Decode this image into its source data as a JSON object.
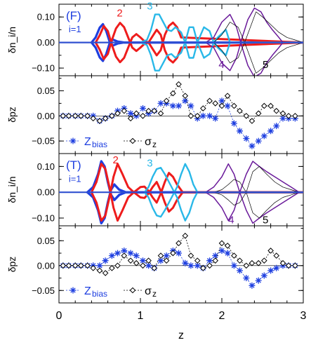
{
  "colors": {
    "red": "#ee1c1c",
    "cyan": "#29b8e8",
    "blue": "#1e3fe0",
    "purple": "#6a1a9a",
    "black": "#000000",
    "gray": "#707070",
    "zero_line_blue": "#3050d0"
  },
  "figure": {
    "xlabel": "z",
    "xlim": [
      0,
      3
    ],
    "xticks": [
      "0",
      "1",
      "2",
      "3"
    ]
  },
  "chart_data": [
    {
      "type": "line",
      "panel_label": "(F)",
      "ylabel": "δn_i/n",
      "ylim": [
        -0.13,
        0.15
      ],
      "yticks": [
        "0.10",
        "0.00",
        "−0.10"
      ],
      "ytick_values": [
        0.1,
        0.0,
        -0.1
      ],
      "series_labels": [
        {
          "text": "i=1",
          "color_key": "blue",
          "z": 0.12,
          "y": 0.04,
          "small": true
        },
        {
          "text": "2",
          "color_key": "red",
          "z": 0.71,
          "y": 0.102
        },
        {
          "text": "3",
          "color_key": "cyan",
          "z": 1.08,
          "y": 0.13
        },
        {
          "text": "4",
          "color_key": "purple",
          "z": 1.96,
          "y": -0.1
        },
        {
          "text": "5",
          "color_key": "black",
          "z": 2.5,
          "y": -0.1
        }
      ],
      "series": [
        {
          "key": "blue",
          "width": 3.2,
          "x": [
            0.4,
            0.45,
            0.5,
            0.54,
            0.58,
            0.62,
            0.66,
            0.72,
            0.8,
            3.0
          ],
          "y": [
            0,
            0.02,
            0.058,
            0.072,
            0.045,
            0.005,
            -0.012,
            -0.004,
            0,
            0
          ],
          "y2": [
            0,
            -0.02,
            -0.058,
            -0.072,
            -0.045,
            -0.005,
            0.012,
            0.004,
            0,
            0
          ]
        },
        {
          "key": "red",
          "width": 3,
          "x": [
            0.45,
            0.5,
            0.55,
            0.6,
            0.65,
            0.7,
            0.75,
            0.8,
            0.85,
            0.9,
            0.95,
            1.0,
            1.05,
            1.1,
            1.15,
            1.2,
            1.25,
            1.3,
            1.35,
            1.4,
            1.45,
            1.5,
            3.0
          ],
          "y": [
            0,
            -0.028,
            -0.065,
            -0.045,
            0.01,
            0.055,
            0.077,
            0.06,
            0.02,
            -0.02,
            -0.033,
            -0.02,
            -0.005,
            0,
            -0.025,
            -0.05,
            -0.03,
            0.03,
            0.065,
            0.078,
            0.06,
            0.02,
            0
          ],
          "y2": [
            0,
            0.028,
            0.065,
            0.045,
            -0.01,
            -0.055,
            -0.077,
            -0.06,
            -0.02,
            0.02,
            0.033,
            0.02,
            0.005,
            0,
            0.025,
            0.05,
            0.03,
            -0.03,
            -0.065,
            -0.078,
            -0.06,
            -0.02,
            0
          ]
        },
        {
          "key": "cyan",
          "width": 2.4,
          "x": [
            1.0,
            1.08,
            1.13,
            1.18,
            1.23,
            1.28,
            1.33,
            1.38,
            1.43,
            1.5,
            1.55,
            1.6,
            1.65,
            1.7,
            1.78,
            1.85,
            1.9,
            1.95,
            2.05,
            2.1,
            3.0
          ],
          "y": [
            0,
            0.01,
            0.05,
            0.11,
            0.11,
            0.08,
            0.05,
            0.045,
            0.06,
            0.04,
            0.0,
            -0.06,
            -0.06,
            0.0,
            0.06,
            0.045,
            0.0,
            0.02,
            0.05,
            0.0,
            0
          ],
          "y2": [
            0,
            -0.01,
            -0.05,
            -0.11,
            -0.11,
            -0.08,
            -0.05,
            -0.045,
            -0.06,
            -0.04,
            0.0,
            0.06,
            0.06,
            0.0,
            -0.06,
            -0.045,
            0.0,
            -0.02,
            -0.05,
            0.0,
            0
          ]
        },
        {
          "key": "purple",
          "width": 1.5,
          "x": [
            1.8,
            1.9,
            2.0,
            2.1,
            2.18,
            2.25,
            2.32,
            2.4,
            2.48,
            2.55,
            2.62,
            2.7,
            2.75,
            3.0
          ],
          "y": [
            0,
            -0.02,
            -0.08,
            -0.11,
            -0.06,
            0.02,
            0.09,
            0.135,
            0.12,
            0.08,
            0.05,
            0.02,
            0,
            0
          ],
          "y2": [
            0,
            0.02,
            0.08,
            0.11,
            0.06,
            -0.02,
            -0.09,
            -0.135,
            -0.12,
            -0.08,
            -0.05,
            -0.02,
            0,
            0
          ]
        },
        {
          "key": "black",
          "width": 0.7,
          "x": [
            1.9,
            2.0,
            2.1,
            2.2,
            2.28,
            2.35,
            2.42,
            2.5,
            2.6,
            2.7,
            2.8,
            2.9,
            3.0
          ],
          "y": [
            0,
            0.03,
            0.08,
            0.06,
            0.0,
            -0.06,
            -0.12,
            -0.1,
            -0.07,
            -0.04,
            -0.02,
            -0.01,
            0
          ],
          "y2": [
            0,
            -0.03,
            -0.08,
            -0.06,
            0.0,
            0.06,
            0.12,
            0.1,
            0.07,
            0.04,
            0.02,
            0.01,
            0
          ]
        }
      ]
    },
    {
      "type": "scatter",
      "ylabel": "δpz",
      "ylim": [
        -0.075,
        0.08
      ],
      "yticks": [
        "0.05",
        "0.00",
        "−0.05"
      ],
      "ytick_values": [
        0.05,
        0.0,
        -0.05
      ],
      "legend": [
        {
          "label_main": "Z",
          "label_sub": "bias",
          "marker": "star",
          "color_key": "blue"
        },
        {
          "label_main": "σ",
          "label_sub": "z",
          "marker": "diamond",
          "color_key": "black"
        }
      ],
      "series": [
        {
          "name": "Z_bias",
          "marker": "star",
          "color_key": "blue",
          "x": [
            0.05,
            0.12,
            0.2,
            0.27,
            0.35,
            0.42,
            0.5,
            0.57,
            0.65,
            0.72,
            0.8,
            0.88,
            0.95,
            1.03,
            1.1,
            1.17,
            1.25,
            1.32,
            1.4,
            1.47,
            1.55,
            1.62,
            1.7,
            1.77,
            1.85,
            1.92,
            2.0,
            2.07,
            2.15,
            2.22,
            2.3,
            2.37,
            2.45,
            2.52,
            2.6,
            2.67,
            2.75,
            2.82,
            2.9
          ],
          "y": [
            0.0,
            0.0,
            0.0,
            0.0,
            0.0,
            0.0,
            -0.01,
            -0.005,
            0.0,
            0.01,
            0.015,
            0.005,
            0.0,
            0.015,
            0.005,
            0.01,
            0.025,
            0.025,
            0.02,
            0.02,
            0.03,
            0.02,
            -0.005,
            0.0,
            0.0,
            -0.005,
            0.03,
            0.02,
            -0.015,
            -0.03,
            -0.045,
            -0.06,
            -0.05,
            -0.04,
            -0.03,
            -0.02,
            -0.005,
            -0.005,
            -0.005
          ]
        },
        {
          "name": "sigma_z",
          "marker": "diamond",
          "color_key": "black",
          "x": [
            0.05,
            0.12,
            0.2,
            0.27,
            0.35,
            0.42,
            0.5,
            0.57,
            0.65,
            0.72,
            0.8,
            0.88,
            0.95,
            1.03,
            1.1,
            1.17,
            1.25,
            1.32,
            1.4,
            1.47,
            1.55,
            1.62,
            1.7,
            1.77,
            1.85,
            1.92,
            2.0,
            2.07,
            2.15,
            2.22,
            2.3,
            2.37,
            2.45,
            2.52,
            2.6,
            2.67,
            2.75,
            2.82,
            2.9
          ],
          "y": [
            0.0,
            0.0,
            0.0,
            0.0,
            0.0,
            -0.005,
            -0.01,
            -0.005,
            0.0,
            0.005,
            0.01,
            -0.005,
            0.005,
            0.0,
            0.01,
            0.01,
            0.005,
            0.03,
            0.045,
            0.063,
            0.04,
            0.0,
            0.0,
            0.015,
            0.03,
            0.025,
            0.02,
            0.04,
            0.02,
            0.01,
            0.0,
            -0.01,
            0.005,
            0.02,
            0.02,
            0.01,
            0.005,
            0.0,
            0.0
          ]
        }
      ]
    },
    {
      "type": "line",
      "panel_label": "(T)",
      "ylabel": "δn_i/n",
      "ylim": [
        -0.13,
        0.15
      ],
      "yticks": [
        "0.10",
        "0.00",
        "−0.10"
      ],
      "ytick_values": [
        0.1,
        0.0,
        -0.1
      ],
      "series_labels": [
        {
          "text": "i=1",
          "color_key": "blue",
          "z": 0.12,
          "y": 0.04,
          "small": true
        },
        {
          "text": "2",
          "color_key": "red",
          "z": 0.66,
          "y": 0.112
        },
        {
          "text": "3",
          "color_key": "cyan",
          "z": 1.08,
          "y": 0.1
        },
        {
          "text": "4",
          "color_key": "purple",
          "z": 2.08,
          "y": -0.12
        },
        {
          "text": "5",
          "color_key": "black",
          "z": 2.5,
          "y": -0.12
        }
      ],
      "series": [
        {
          "key": "blue",
          "width": 3.4,
          "x": [
            0.35,
            0.42,
            0.48,
            0.52,
            0.56,
            0.6,
            0.64,
            0.68,
            0.74,
            0.82,
            3.0
          ],
          "y": [
            0,
            0.02,
            0.07,
            0.12,
            0.1,
            0.04,
            -0.01,
            -0.03,
            -0.01,
            0,
            0
          ],
          "y2": [
            0,
            -0.02,
            -0.07,
            -0.12,
            -0.1,
            -0.04,
            0.01,
            0.03,
            0.01,
            0,
            0
          ]
        },
        {
          "key": "red",
          "width": 3,
          "x": [
            0.4,
            0.46,
            0.52,
            0.57,
            0.62,
            0.67,
            0.72,
            0.78,
            0.85,
            0.92,
            1.0,
            1.05,
            1.1,
            1.15,
            1.2,
            1.25,
            1.3,
            1.35,
            1.4,
            1.45,
            1.52,
            3.0
          ],
          "y": [
            0,
            -0.04,
            -0.11,
            -0.09,
            -0.02,
            0.06,
            0.11,
            0.07,
            0.02,
            0.0,
            0.02,
            0.022,
            0.005,
            -0.02,
            -0.04,
            -0.005,
            0.04,
            0.075,
            0.06,
            0.03,
            0.0,
            0
          ],
          "y2": [
            0,
            0.04,
            0.11,
            0.09,
            0.02,
            -0.06,
            -0.11,
            -0.07,
            -0.02,
            0.0,
            -0.02,
            -0.022,
            -0.005,
            0.02,
            0.04,
            0.005,
            -0.04,
            -0.075,
            -0.06,
            -0.03,
            0.0,
            0
          ]
        },
        {
          "key": "cyan",
          "width": 2.4,
          "x": [
            1.05,
            1.1,
            1.15,
            1.2,
            1.25,
            1.3,
            1.35,
            1.4,
            1.45,
            1.5,
            1.55,
            1.6,
            1.65,
            1.7,
            3.0
          ],
          "y": [
            0,
            0.02,
            0.06,
            0.09,
            0.095,
            0.07,
            0.04,
            0.01,
            -0.02,
            -0.07,
            -0.11,
            -0.08,
            -0.03,
            0.0,
            0
          ],
          "y2": [
            0,
            -0.02,
            -0.06,
            -0.09,
            -0.095,
            -0.07,
            -0.04,
            -0.01,
            0.02,
            0.07,
            0.11,
            0.08,
            0.03,
            0.0,
            0
          ]
        },
        {
          "key": "purple",
          "width": 1.5,
          "x": [
            1.8,
            1.9,
            2.0,
            2.08,
            2.15,
            2.22,
            2.3,
            2.38,
            2.46,
            2.55,
            2.65,
            2.75,
            2.85,
            2.95,
            3.0
          ],
          "y": [
            0,
            -0.02,
            -0.06,
            -0.11,
            -0.07,
            0.0,
            0.07,
            0.12,
            0.1,
            0.08,
            0.06,
            0.04,
            0.02,
            0.0,
            0
          ],
          "y2": [
            0,
            0.02,
            0.06,
            0.11,
            0.07,
            0.0,
            -0.07,
            -0.12,
            -0.1,
            -0.08,
            -0.06,
            -0.04,
            -0.02,
            0.0,
            0
          ]
        },
        {
          "key": "black",
          "width": 0.7,
          "x": [
            1.9,
            2.0,
            2.08,
            2.15,
            2.22,
            2.3,
            2.38,
            2.46,
            2.55,
            2.65,
            2.75,
            2.85,
            2.95,
            3.0
          ],
          "y": [
            0,
            0.01,
            0.03,
            0.05,
            0.04,
            0.0,
            -0.08,
            -0.1,
            -0.07,
            -0.04,
            -0.02,
            -0.01,
            0,
            0
          ],
          "y2": [
            0,
            -0.01,
            -0.03,
            -0.05,
            -0.04,
            0.0,
            0.08,
            0.1,
            0.07,
            0.04,
            0.02,
            0.01,
            0,
            0
          ]
        }
      ]
    },
    {
      "type": "scatter",
      "ylabel": "δpz",
      "ylim": [
        -0.075,
        0.08
      ],
      "yticks": [
        "0.05",
        "0.00",
        "−0.05"
      ],
      "ytick_values": [
        0.05,
        0.0,
        -0.05
      ],
      "legend": [
        {
          "label_main": "Z",
          "label_sub": "bias",
          "marker": "star",
          "color_key": "blue"
        },
        {
          "label_main": "σ",
          "label_sub": "z",
          "marker": "diamond",
          "color_key": "black"
        }
      ],
      "series": [
        {
          "name": "Z_bias",
          "marker": "star",
          "color_key": "blue",
          "x": [
            0.05,
            0.12,
            0.2,
            0.27,
            0.35,
            0.42,
            0.5,
            0.57,
            0.65,
            0.72,
            0.8,
            0.88,
            0.95,
            1.03,
            1.1,
            1.17,
            1.25,
            1.32,
            1.4,
            1.47,
            1.55,
            1.62,
            1.7,
            1.77,
            1.85,
            1.92,
            2.0,
            2.07,
            2.15,
            2.22,
            2.3,
            2.37,
            2.45,
            2.52,
            2.6,
            2.67,
            2.75,
            2.82,
            2.9
          ],
          "y": [
            0.0,
            0.0,
            0.0,
            0.0,
            0.0,
            0.0,
            0.0,
            0.01,
            0.02,
            0.025,
            0.03,
            0.025,
            0.02,
            0.01,
            0.0,
            -0.005,
            0.01,
            0.02,
            0.03,
            0.025,
            0.005,
            0.0,
            0.0,
            -0.005,
            0.01,
            0.02,
            0.03,
            0.025,
            0.0,
            -0.01,
            -0.025,
            -0.04,
            -0.03,
            -0.02,
            -0.01,
            -0.005,
            0.0,
            0.0,
            0.0
          ]
        },
        {
          "name": "sigma_z",
          "marker": "diamond",
          "color_key": "black",
          "x": [
            0.05,
            0.12,
            0.2,
            0.27,
            0.35,
            0.42,
            0.5,
            0.57,
            0.65,
            0.72,
            0.8,
            0.88,
            0.95,
            1.03,
            1.1,
            1.17,
            1.25,
            1.32,
            1.4,
            1.47,
            1.55,
            1.62,
            1.7,
            1.77,
            1.85,
            1.92,
            2.0,
            2.07,
            2.15,
            2.22,
            2.3,
            2.37,
            2.45,
            2.52,
            2.6,
            2.67,
            2.75,
            2.82,
            2.9
          ],
          "y": [
            0.0,
            0.0,
            0.0,
            0.0,
            0.0,
            -0.005,
            -0.01,
            -0.015,
            -0.005,
            0.0,
            0.02,
            0.01,
            0.005,
            0.0,
            0.01,
            -0.005,
            0.02,
            0.01,
            0.025,
            0.045,
            0.06,
            0.02,
            0.01,
            -0.005,
            0.0,
            0.01,
            0.045,
            0.04,
            0.02,
            0.01,
            0.0,
            0.005,
            0.005,
            0.01,
            0.03,
            0.02,
            0.005,
            0.0,
            0.0
          ]
        }
      ]
    }
  ]
}
